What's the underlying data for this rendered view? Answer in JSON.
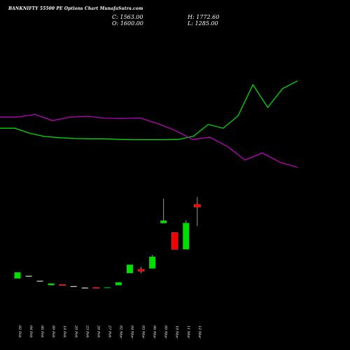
{
  "header": {
    "title": "BANKNIFTY 55500  PE Options  Chart MunafaSutra.com",
    "close_label": "C:",
    "close_value": "1563.00",
    "high_label": "H:",
    "high_value": "1772.60",
    "open_label": "O:",
    "open_value": "1600.00",
    "low_label": "L:",
    "low_value": "1285.00"
  },
  "colors": {
    "background": "#000000",
    "up": "#00dd00",
    "down": "#ee0000",
    "line_green": "#00dd00",
    "line_magenta": "#bb00bb"
  },
  "chart_data": {
    "type": "candlestick",
    "title": "BANKNIFTY 55500  PE Options  Chart MunafaSutra.com",
    "x_labels": [
      "02 Feb",
      "04 Feb",
      "06 Feb",
      "09 Feb",
      "19 Feb",
      "20 Feb",
      "23 Feb",
      "26 Feb",
      "27 Feb",
      "02 Mar",
      "04 Mar",
      "05 Mar",
      "06 Mar",
      "09 Mar",
      "10 Mar",
      "11 Mar",
      "12 Mar"
    ],
    "candles": [
      {
        "date": "02 Feb",
        "open": 0.148,
        "close": 0.169,
        "high": 0.169,
        "low": 0.148,
        "dir": "up"
      },
      {
        "date": "04 Feb",
        "open": 0.157,
        "close": 0.157,
        "high": 0.157,
        "low": 0.157,
        "dir": "flat"
      },
      {
        "date": "06 Feb",
        "open": 0.14,
        "close": 0.14,
        "high": 0.14,
        "low": 0.14,
        "dir": "flat"
      },
      {
        "date": "09 Feb",
        "open": 0.125,
        "close": 0.131,
        "high": 0.131,
        "low": 0.125,
        "dir": "up"
      },
      {
        "date": "19 Feb",
        "open": 0.127,
        "close": 0.124,
        "high": 0.127,
        "low": 0.124,
        "dir": "down"
      },
      {
        "date": "20 Feb",
        "open": 0.122,
        "close": 0.122,
        "high": 0.122,
        "low": 0.122,
        "dir": "flat"
      },
      {
        "date": "23 Feb",
        "open": 0.117,
        "close": 0.117,
        "high": 0.117,
        "low": 0.117,
        "dir": "flat"
      },
      {
        "date": "26 Feb",
        "open": 0.117,
        "close": 0.116,
        "high": 0.117,
        "low": 0.116,
        "dir": "down"
      },
      {
        "date": "27 Feb",
        "open": 0.116,
        "close": 0.118,
        "high": 0.118,
        "low": 0.116,
        "dir": "up"
      },
      {
        "date": "02 Mar",
        "open": 0.125,
        "close": 0.135,
        "high": 0.135,
        "low": 0.125,
        "dir": "up"
      },
      {
        "date": "04 Mar",
        "open": 0.166,
        "close": 0.195,
        "high": 0.195,
        "low": 0.166,
        "dir": "up"
      },
      {
        "date": "05 Mar",
        "open": 0.179,
        "close": 0.173,
        "high": 0.188,
        "low": 0.166,
        "dir": "down"
      },
      {
        "date": "06 Mar",
        "open": 0.182,
        "close": 0.222,
        "high": 0.228,
        "low": 0.182,
        "dir": "up"
      },
      {
        "date": "09 Mar",
        "open": 0.336,
        "close": 0.345,
        "high": 0.42,
        "low": 0.336,
        "dir": "up"
      },
      {
        "date": "10 Mar",
        "open": 0.304,
        "close": 0.247,
        "high": 0.304,
        "low": 0.247,
        "dir": "down"
      },
      {
        "date": "11 Mar",
        "open": 0.247,
        "close": 0.337,
        "high": 0.346,
        "low": 0.247,
        "dir": "up"
      },
      {
        "date": "12 Mar",
        "open": 0.4,
        "close": 0.391,
        "high": 0.425,
        "low": 0.326,
        "dir": "down"
      }
    ],
    "lines": [
      {
        "color": "green",
        "values": [
          0.659,
          0.659,
          0.642,
          0.631,
          0.627,
          0.624,
          0.623,
          0.623,
          0.621,
          0.62,
          0.62,
          0.62,
          0.621,
          0.632,
          0.672,
          0.659,
          0.701,
          0.807,
          0.73,
          0.794,
          0.82
        ]
      },
      {
        "color": "magenta",
        "values": [
          0.697,
          0.697,
          0.706,
          0.685,
          0.697,
          0.7,
          0.693,
          0.692,
          0.694,
          0.675,
          0.652,
          0.621,
          0.628,
          0.597,
          0.551,
          0.575,
          0.543,
          0.526
        ]
      }
    ]
  }
}
